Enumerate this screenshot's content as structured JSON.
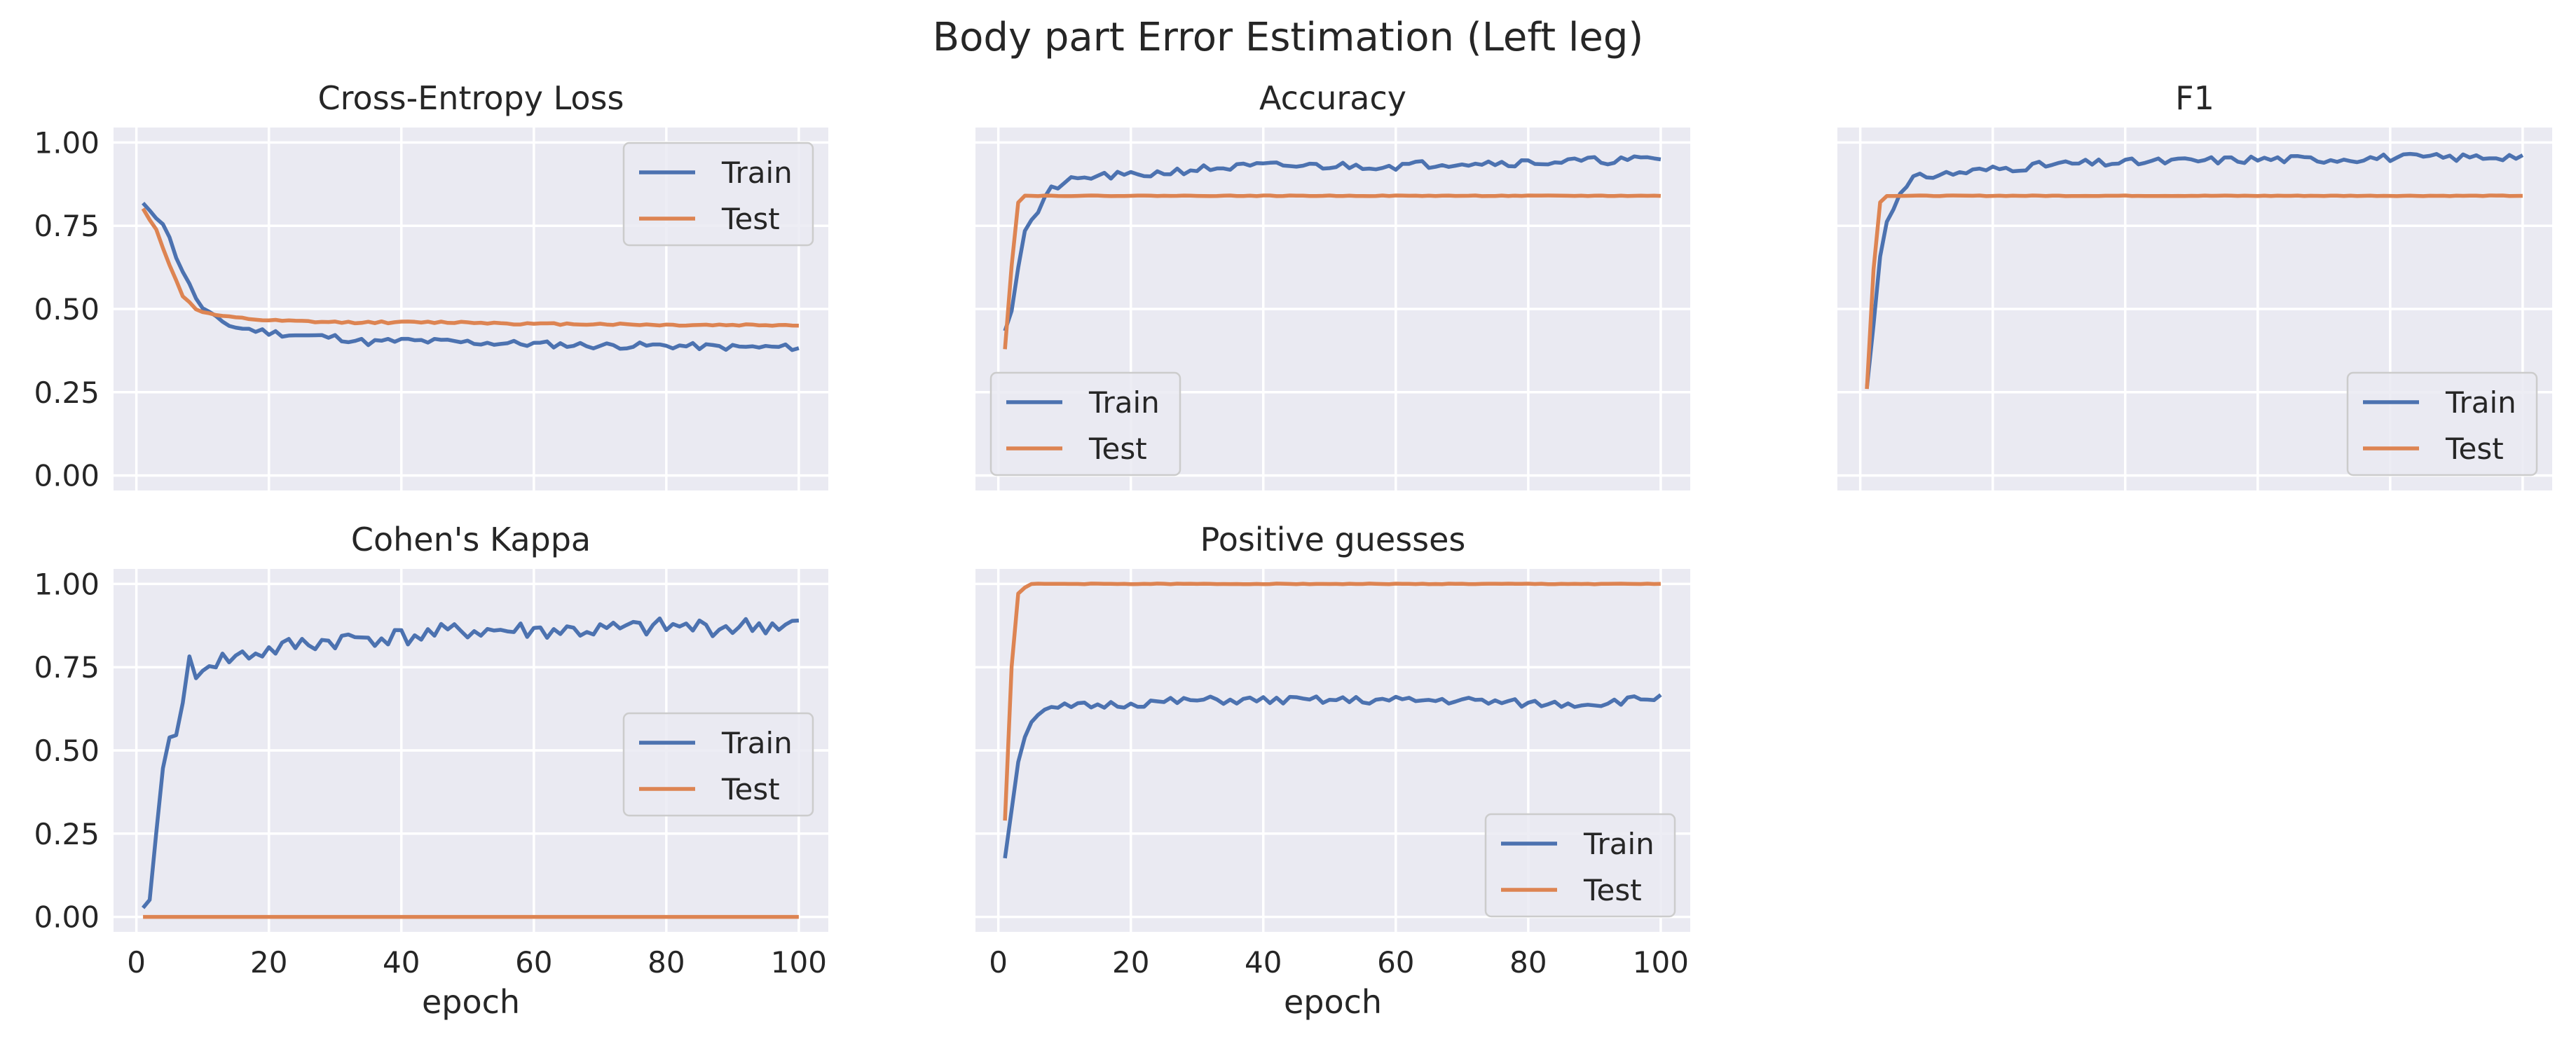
{
  "title": "Body part Error Estimation (Left leg)",
  "colors": {
    "train": "#4c72b0",
    "test": "#dd8452",
    "panel_bg": "#eaeaf2",
    "grid": "#ffffff",
    "text": "#262626"
  },
  "grid": true,
  "chart_data": [
    {
      "type": "line",
      "title": "Cross-Entropy Loss",
      "xlabel": "",
      "ylabel": "",
      "xlim": [
        1,
        100
      ],
      "ylim": [
        0,
        1
      ],
      "xticks": [
        0,
        20,
        40,
        60,
        80,
        100
      ],
      "yticks": [
        0.0,
        0.25,
        0.5,
        0.75,
        1.0
      ],
      "ytick_labels": [
        "0.00",
        "0.25",
        "0.50",
        "0.75",
        "1.00"
      ],
      "show_xtick_labels": false,
      "show_ytick_labels": true,
      "legend": "upper right",
      "series": [
        {
          "name": "Train",
          "anchors": [
            [
              1,
              0.81
            ],
            [
              2,
              0.8
            ],
            [
              4,
              0.76
            ],
            [
              6,
              0.66
            ],
            [
              8,
              0.57
            ],
            [
              10,
              0.5
            ],
            [
              12,
              0.47
            ],
            [
              15,
              0.445
            ],
            [
              20,
              0.43
            ],
            [
              25,
              0.42
            ],
            [
              30,
              0.415
            ],
            [
              35,
              0.4
            ],
            [
              40,
              0.405
            ],
            [
              50,
              0.4
            ],
            [
              60,
              0.395
            ],
            [
              70,
              0.39
            ],
            [
              80,
              0.39
            ],
            [
              90,
              0.385
            ],
            [
              100,
              0.385
            ]
          ],
          "noise": 0.01,
          "seed": 11
        },
        {
          "name": "Test",
          "anchors": [
            [
              1,
              0.8
            ],
            [
              3,
              0.74
            ],
            [
              5,
              0.63
            ],
            [
              7,
              0.54
            ],
            [
              9,
              0.5
            ],
            [
              11,
              0.485
            ],
            [
              14,
              0.475
            ],
            [
              20,
              0.465
            ],
            [
              30,
              0.46
            ],
            [
              40,
              0.46
            ],
            [
              50,
              0.46
            ],
            [
              60,
              0.455
            ],
            [
              70,
              0.455
            ],
            [
              80,
              0.452
            ],
            [
              90,
              0.452
            ],
            [
              100,
              0.452
            ]
          ],
          "noise": 0.003,
          "seed": 12
        }
      ]
    },
    {
      "type": "line",
      "title": "Accuracy",
      "xlabel": "",
      "ylabel": "",
      "xlim": [
        1,
        100
      ],
      "ylim": [
        0,
        1
      ],
      "xticks": [
        0,
        20,
        40,
        60,
        80,
        100
      ],
      "yticks": [
        0.0,
        0.25,
        0.5,
        0.75,
        1.0
      ],
      "ytick_labels": [
        "0.00",
        "0.25",
        "0.50",
        "0.75",
        "1.00"
      ],
      "show_xtick_labels": false,
      "show_ytick_labels": false,
      "legend": "lower left",
      "series": [
        {
          "name": "Train",
          "anchors": [
            [
              1,
              0.44
            ],
            [
              2,
              0.5
            ],
            [
              3,
              0.63
            ],
            [
              4,
              0.73
            ],
            [
              5,
              0.77
            ],
            [
              6,
              0.79
            ],
            [
              8,
              0.86
            ],
            [
              10,
              0.88
            ],
            [
              15,
              0.9
            ],
            [
              20,
              0.9
            ],
            [
              30,
              0.92
            ],
            [
              40,
              0.93
            ],
            [
              50,
              0.93
            ],
            [
              60,
              0.93
            ],
            [
              70,
              0.94
            ],
            [
              80,
              0.94
            ],
            [
              90,
              0.945
            ],
            [
              100,
              0.95
            ]
          ],
          "noise": 0.012,
          "seed": 21
        },
        {
          "name": "Test",
          "anchors": [
            [
              1,
              0.38
            ],
            [
              2,
              0.63
            ],
            [
              3,
              0.82
            ],
            [
              4,
              0.84
            ],
            [
              5,
              0.84
            ],
            [
              100,
              0.84
            ]
          ],
          "noise": 0.001,
          "seed": 22
        }
      ]
    },
    {
      "type": "line",
      "title": "F1",
      "xlabel": "",
      "ylabel": "",
      "xlim": [
        1,
        100
      ],
      "ylim": [
        0,
        1
      ],
      "xticks": [
        0,
        20,
        40,
        60,
        80,
        100
      ],
      "yticks": [
        0.0,
        0.25,
        0.5,
        0.75,
        1.0
      ],
      "ytick_labels": [
        "0.00",
        "0.25",
        "0.50",
        "0.75",
        "1.00"
      ],
      "show_xtick_labels": false,
      "show_ytick_labels": false,
      "legend": "lower right",
      "series": [
        {
          "name": "Train",
          "anchors": [
            [
              1,
              0.26
            ],
            [
              2,
              0.46
            ],
            [
              3,
              0.66
            ],
            [
              4,
              0.77
            ],
            [
              5,
              0.81
            ],
            [
              6,
              0.84
            ],
            [
              8,
              0.89
            ],
            [
              10,
              0.9
            ],
            [
              15,
              0.91
            ],
            [
              20,
              0.92
            ],
            [
              30,
              0.935
            ],
            [
              40,
              0.94
            ],
            [
              50,
              0.945
            ],
            [
              60,
              0.95
            ],
            [
              70,
              0.95
            ],
            [
              80,
              0.955
            ],
            [
              90,
              0.955
            ],
            [
              100,
              0.96
            ]
          ],
          "noise": 0.012,
          "seed": 31
        },
        {
          "name": "Test",
          "anchors": [
            [
              1,
              0.26
            ],
            [
              2,
              0.62
            ],
            [
              3,
              0.82
            ],
            [
              4,
              0.84
            ],
            [
              5,
              0.84
            ],
            [
              100,
              0.84
            ]
          ],
          "noise": 0.001,
          "seed": 32
        }
      ]
    },
    {
      "type": "line",
      "title": "Cohen's Kappa",
      "xlabel": "epoch",
      "ylabel": "",
      "xlim": [
        1,
        100
      ],
      "ylim": [
        0,
        1
      ],
      "xticks": [
        0,
        20,
        40,
        60,
        80,
        100
      ],
      "xtick_labels": [
        "0",
        "20",
        "40",
        "60",
        "80",
        "100"
      ],
      "yticks": [
        0.0,
        0.25,
        0.5,
        0.75,
        1.0
      ],
      "ytick_labels": [
        "0.00",
        "0.25",
        "0.50",
        "0.75",
        "1.00"
      ],
      "show_xtick_labels": true,
      "show_ytick_labels": true,
      "legend": "center right",
      "series": [
        {
          "name": "Train",
          "anchors": [
            [
              1,
              0.0
            ],
            [
              2,
              0.07
            ],
            [
              3,
              0.25
            ],
            [
              4,
              0.44
            ],
            [
              5,
              0.53
            ],
            [
              6,
              0.57
            ],
            [
              7,
              0.66
            ],
            [
              8,
              0.76
            ],
            [
              9,
              0.7
            ],
            [
              10,
              0.76
            ],
            [
              15,
              0.78
            ],
            [
              20,
              0.8
            ],
            [
              25,
              0.82
            ],
            [
              30,
              0.83
            ],
            [
              35,
              0.84
            ],
            [
              40,
              0.84
            ],
            [
              50,
              0.86
            ],
            [
              60,
              0.86
            ],
            [
              70,
              0.86
            ],
            [
              80,
              0.87
            ],
            [
              90,
              0.87
            ],
            [
              100,
              0.88
            ]
          ],
          "noise": 0.028,
          "seed": 41
        },
        {
          "name": "Test",
          "anchors": [
            [
              1,
              0.0
            ],
            [
              100,
              0.0
            ]
          ],
          "noise": 0,
          "seed": 42
        }
      ]
    },
    {
      "type": "line",
      "title": "Positive guesses",
      "xlabel": "epoch",
      "ylabel": "",
      "xlim": [
        1,
        100
      ],
      "ylim": [
        0,
        1
      ],
      "xticks": [
        0,
        20,
        40,
        60,
        80,
        100
      ],
      "xtick_labels": [
        "0",
        "20",
        "40",
        "60",
        "80",
        "100"
      ],
      "yticks": [
        0.0,
        0.25,
        0.5,
        0.75,
        1.0
      ],
      "ytick_labels": [
        "0.00",
        "0.25",
        "0.50",
        "0.75",
        "1.00"
      ],
      "show_xtick_labels": true,
      "show_ytick_labels": false,
      "legend": "lower right",
      "series": [
        {
          "name": "Train",
          "anchors": [
            [
              1,
              0.18
            ],
            [
              2,
              0.33
            ],
            [
              3,
              0.46
            ],
            [
              4,
              0.55
            ],
            [
              5,
              0.59
            ],
            [
              6,
              0.61
            ],
            [
              8,
              0.62
            ],
            [
              10,
              0.63
            ],
            [
              20,
              0.64
            ],
            [
              30,
              0.65
            ],
            [
              40,
              0.65
            ],
            [
              50,
              0.65
            ],
            [
              60,
              0.65
            ],
            [
              70,
              0.65
            ],
            [
              80,
              0.64
            ],
            [
              90,
              0.64
            ],
            [
              100,
              0.66
            ]
          ],
          "noise": 0.012,
          "seed": 51
        },
        {
          "name": "Test",
          "anchors": [
            [
              1,
              0.29
            ],
            [
              2,
              0.75
            ],
            [
              3,
              0.97
            ],
            [
              4,
              0.99
            ],
            [
              5,
              1.0
            ],
            [
              100,
              1.0
            ]
          ],
          "noise": 0.001,
          "seed": 52
        }
      ]
    }
  ]
}
